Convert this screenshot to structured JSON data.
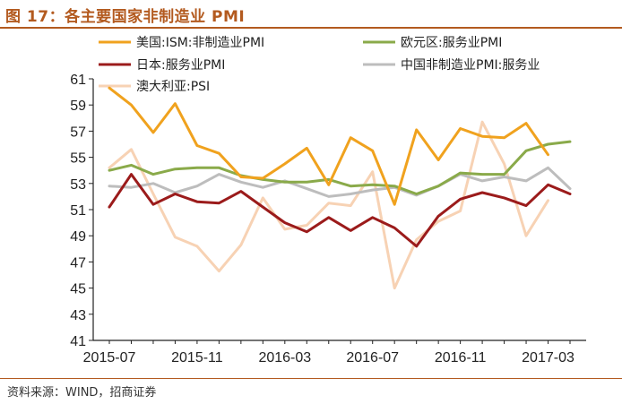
{
  "title": "图 17：各主要国家非制造业 PMI",
  "source": "资料来源：WIND，招商证券",
  "chart_data": {
    "type": "line",
    "title": "图 17：各主要国家非制造业 PMI",
    "xlabel": "",
    "ylabel": "",
    "ylim": [
      41,
      61
    ],
    "yticks": [
      41,
      43,
      45,
      47,
      49,
      51,
      53,
      55,
      57,
      59,
      61
    ],
    "x": [
      "2015-07",
      "2015-08",
      "2015-09",
      "2015-10",
      "2015-11",
      "2015-12",
      "2016-01",
      "2016-02",
      "2016-03",
      "2016-04",
      "2016-05",
      "2016-06",
      "2016-07",
      "2016-08",
      "2016-09",
      "2016-10",
      "2016-11",
      "2016-12",
      "2017-01",
      "2017-02",
      "2017-03",
      "2017-04"
    ],
    "xtick_labels": [
      "2015-07",
      "2015-11",
      "2016-03",
      "2016-07",
      "2016-11",
      "2017-03"
    ],
    "grid": false,
    "legend_position": "top",
    "series": [
      {
        "name": "美国:ISM:非制造业PMI",
        "color": "#f0a21e",
        "values": [
          60.3,
          59.0,
          56.9,
          59.1,
          55.9,
          55.3,
          53.5,
          53.4,
          54.5,
          55.7,
          52.9,
          56.5,
          55.5,
          51.4,
          57.1,
          54.8,
          57.2,
          56.6,
          56.5,
          57.6,
          55.2,
          null
        ]
      },
      {
        "name": "欧元区:服务业PMI",
        "color": "#8aaa4a",
        "values": [
          54.0,
          54.4,
          53.7,
          54.1,
          54.2,
          54.2,
          53.6,
          53.3,
          53.1,
          53.1,
          53.3,
          52.8,
          52.9,
          52.8,
          52.2,
          52.8,
          53.8,
          53.7,
          53.7,
          55.5,
          56.0,
          56.2
        ]
      },
      {
        "name": "日本:服务业PMI",
        "color": "#9b1b1b",
        "values": [
          51.2,
          53.7,
          51.4,
          52.2,
          51.6,
          51.5,
          52.4,
          51.2,
          50.0,
          49.3,
          50.4,
          49.4,
          50.4,
          49.6,
          48.2,
          50.5,
          51.8,
          52.3,
          51.9,
          51.3,
          52.9,
          52.2
        ]
      },
      {
        "name": "中国非制造业PMI:服务业",
        "color": "#bdbdbd",
        "values": [
          52.8,
          52.7,
          53.0,
          52.3,
          52.8,
          53.7,
          53.1,
          52.7,
          53.2,
          52.6,
          52.0,
          52.2,
          52.5,
          52.7,
          52.1,
          52.8,
          53.7,
          53.2,
          53.5,
          53.2,
          54.2,
          52.6
        ]
      },
      {
        "name": "澳大利亚:PSI",
        "color": "#f7d2b4",
        "values": [
          54.2,
          55.6,
          52.2,
          48.9,
          48.2,
          46.3,
          48.3,
          51.9,
          49.5,
          49.8,
          51.5,
          51.3,
          53.9,
          45.0,
          48.7,
          50.1,
          50.9,
          57.7,
          54.5,
          49.0,
          51.7,
          null
        ]
      }
    ]
  }
}
